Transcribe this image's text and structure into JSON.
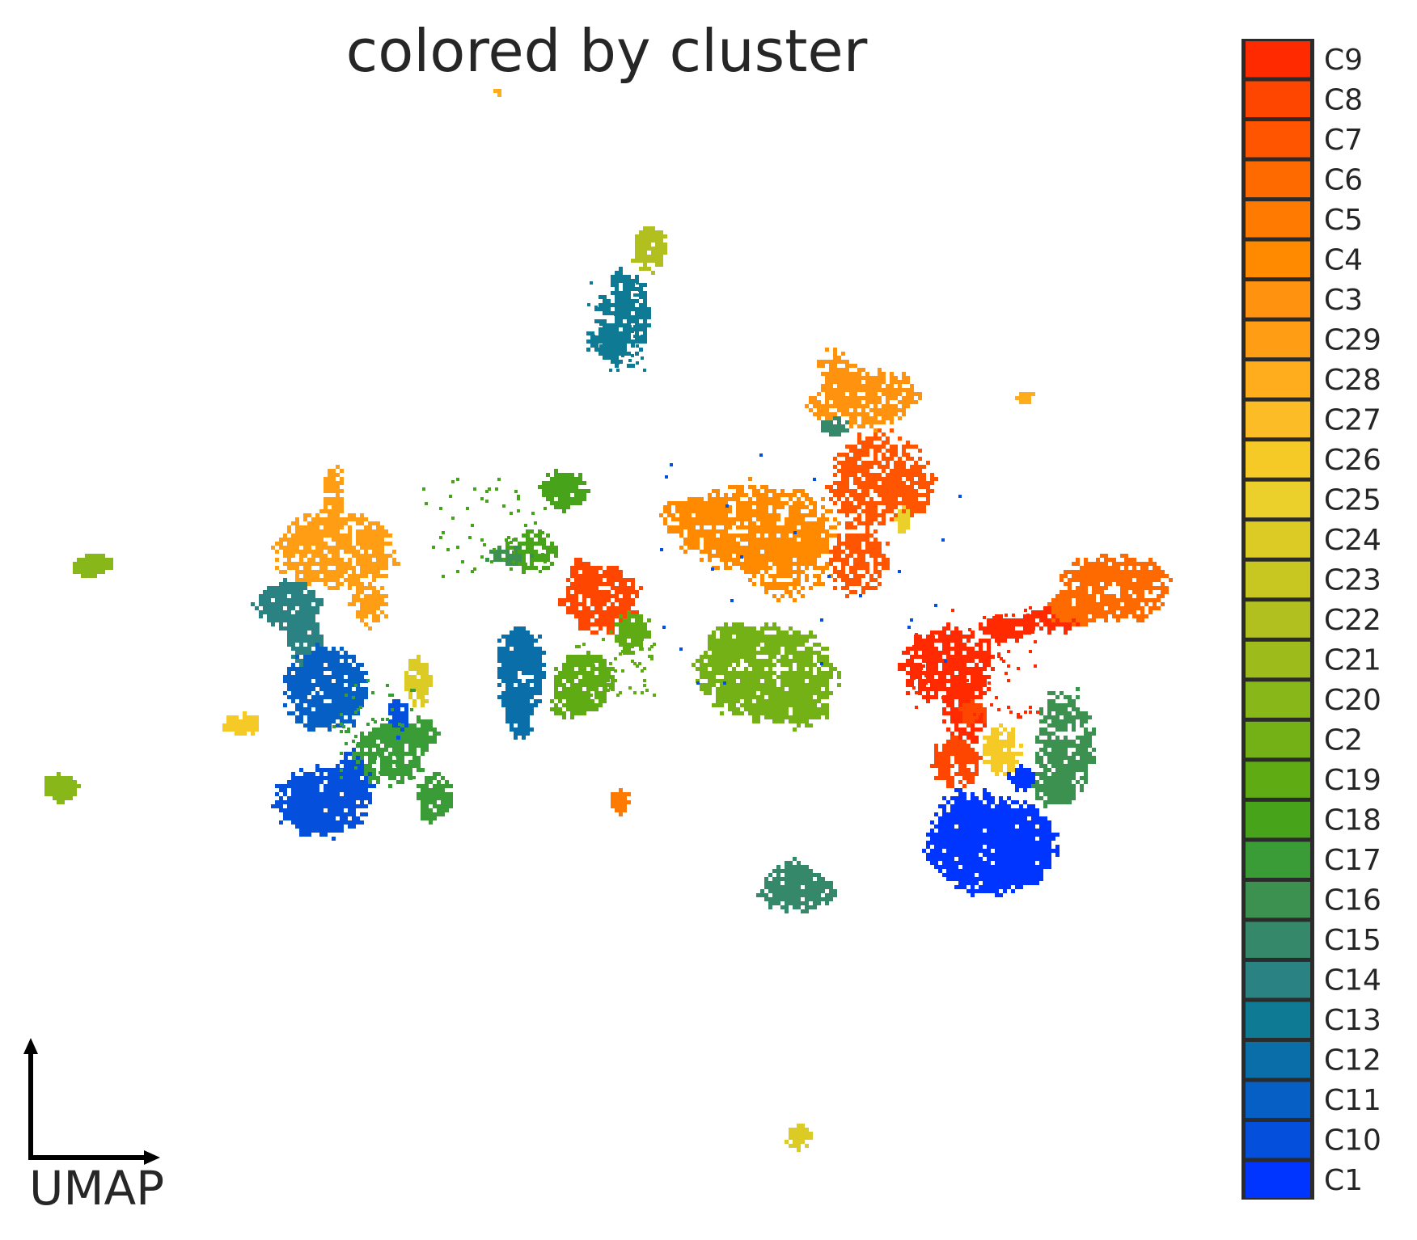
{
  "chart_data": {
    "type": "scatter",
    "title": "colored by cluster",
    "axis_label": "UMAP",
    "grid": false,
    "legend_placement": "right",
    "legend": [
      {
        "name": "C9",
        "color": "#FF2A00"
      },
      {
        "name": "C8",
        "color": "#FF4600"
      },
      {
        "name": "C7",
        "color": "#FF5500"
      },
      {
        "name": "C6",
        "color": "#FF6A00"
      },
      {
        "name": "C5",
        "color": "#FF7A00"
      },
      {
        "name": "C4",
        "color": "#FF8A00"
      },
      {
        "name": "C3",
        "color": "#FF9310"
      },
      {
        "name": "C29",
        "color": "#FF9E14"
      },
      {
        "name": "C28",
        "color": "#FFAD1C"
      },
      {
        "name": "C27",
        "color": "#FBBC25"
      },
      {
        "name": "C26",
        "color": "#F5C926"
      },
      {
        "name": "C25",
        "color": "#EBCF2B"
      },
      {
        "name": "C24",
        "color": "#DCCB25"
      },
      {
        "name": "C23",
        "color": "#C8C722"
      },
      {
        "name": "C22",
        "color": "#B2C01F"
      },
      {
        "name": "C21",
        "color": "#9DBC1B"
      },
      {
        "name": "C20",
        "color": "#88B719"
      },
      {
        "name": "C2",
        "color": "#74B116"
      },
      {
        "name": "C19",
        "color": "#5EAB14"
      },
      {
        "name": "C18",
        "color": "#47A31A"
      },
      {
        "name": "C17",
        "color": "#3A9C36"
      },
      {
        "name": "C16",
        "color": "#3D9150"
      },
      {
        "name": "C15",
        "color": "#35896A"
      },
      {
        "name": "C14",
        "color": "#2A8382"
      },
      {
        "name": "C13",
        "color": "#0E7A94"
      },
      {
        "name": "C12",
        "color": "#0A6FA8"
      },
      {
        "name": "C11",
        "color": "#055FC4"
      },
      {
        "name": "C10",
        "color": "#0450DC"
      },
      {
        "name": "C1",
        "color": "#0035FF"
      }
    ]
  }
}
